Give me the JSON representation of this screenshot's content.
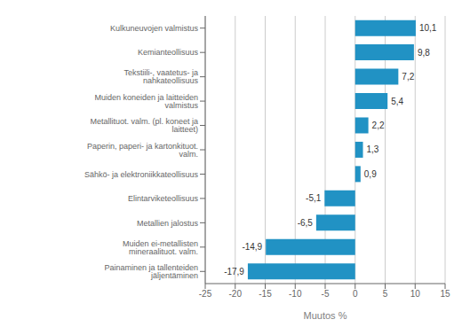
{
  "chart_data": {
    "type": "bar",
    "orientation": "horizontal",
    "categories": [
      "Painaminen ja tallenteiden jäljentäminen",
      "Muiden ei-metallisten mineraalituot. valm.",
      "Metallien jalostus",
      "Elintarviketeollisuus",
      "Sähkö- ja elektroniikkateollisuus",
      "Paperin, paperi- ja kartonkituot. valm.",
      "Metallituot. valm. (pl. koneet ja laitteet)",
      "Muiden koneiden ja laitteiden valmistus",
      "Tekstiili-, vaatetus- ja nahkateollisuus",
      "Kemianteollisuus",
      "Kulkuneuvojen valmistus"
    ],
    "values": [
      -17.9,
      -14.9,
      -6.5,
      -5.1,
      0.9,
      1.3,
      2.2,
      5.4,
      7.2,
      9.8,
      10.1
    ],
    "value_labels": [
      "-17,9",
      "-14,9",
      "-6,5",
      "-5,1",
      "0,9",
      "1,3",
      "2,2",
      "5,4",
      "7,2",
      "9,8",
      "10,1"
    ],
    "data_labels": true,
    "color": "#2192c4",
    "xlabel": "Muutos %",
    "xlim": [
      -25,
      15
    ],
    "xticks": [
      -25,
      -20,
      -15,
      -10,
      -5,
      0,
      5,
      10,
      15
    ],
    "grid": true
  }
}
